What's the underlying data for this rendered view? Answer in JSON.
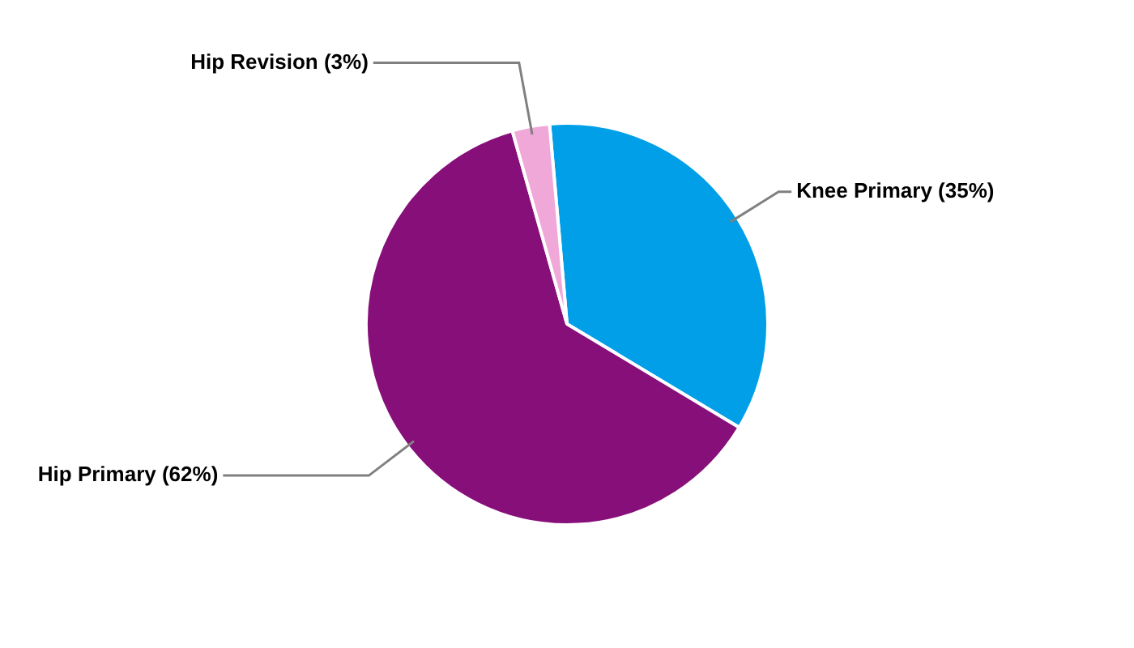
{
  "chart_data": {
    "type": "pie",
    "categories": [
      "Knee Primary (35%)",
      "Hip Primary (62%)",
      "Hip Revision (3%)"
    ],
    "values": [
      35,
      62,
      3
    ],
    "colors": [
      "#009fe8",
      "#870f79",
      "#f0a8d8"
    ],
    "legend": false
  }
}
